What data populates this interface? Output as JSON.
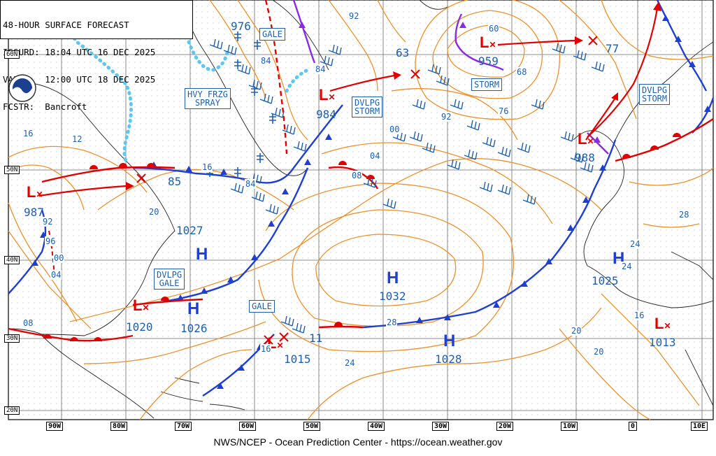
{
  "header": {
    "title": "48-HOUR SURFACE FORECAST",
    "issued": "ISSURD: 18:04 UTC 16 DEC 2025",
    "valid": "VALID:  12:00 UTC 18 DEC 2025",
    "forecaster": "FCSTR:  Bancroft"
  },
  "credit": "NWS/NCEP - Ocean Prediction Center - https://ocean.weather.gov",
  "latitude_labels": [
    "60N",
    "50N",
    "40N",
    "30N",
    "20N"
  ],
  "longitude_labels": [
    "90W",
    "80W",
    "70W",
    "60W",
    "50W",
    "40W",
    "30W",
    "20W",
    "10W",
    "0",
    "10E"
  ],
  "warning_boxes": [
    "GALE",
    "HVY FRZG\nSPRAY",
    "DVLPG\nSTORM",
    "STORM",
    "DVLPG\nSTORM",
    "DVLPG\nGALE",
    "GALE"
  ],
  "pressure_centers": [
    {
      "type": "L",
      "value": "976"
    },
    {
      "type": "L",
      "value": "984"
    },
    {
      "type": "L",
      "value": "959"
    },
    {
      "type": "L",
      "value": "988"
    },
    {
      "type": "L",
      "value": "987"
    },
    {
      "type": "H",
      "value": "1027"
    },
    {
      "type": "H",
      "value": "1026"
    },
    {
      "type": "L",
      "value": "1020"
    },
    {
      "type": "H",
      "value": "1032"
    },
    {
      "type": "L",
      "value": "1015"
    },
    {
      "type": "H",
      "value": "1028"
    },
    {
      "type": "H",
      "value": "1025"
    },
    {
      "type": "L",
      "value": "1013"
    },
    {
      "type": "L",
      "value": "63"
    },
    {
      "type": "L",
      "value": "77"
    },
    {
      "type": "L",
      "value": "85"
    },
    {
      "type": "L",
      "value": "11"
    }
  ],
  "isobar_labels": [
    "92",
    "60",
    "68",
    "76",
    "84",
    "84",
    "92",
    "16",
    "12",
    "00",
    "04",
    "08",
    "84",
    "92",
    "96",
    "00",
    "04",
    "08",
    "16",
    "20",
    "24",
    "24",
    "28",
    "28",
    "20",
    "20",
    "16",
    "24",
    "16"
  ],
  "colors": {
    "isobar": "#e8922e",
    "cold_front": "#1f3fd0",
    "warm_front": "#e00000",
    "occluded_front": "#8a2be2",
    "ice_edge": "#5ec7ee",
    "grid": "#6a6a6a",
    "label": "#1f5fa8"
  }
}
